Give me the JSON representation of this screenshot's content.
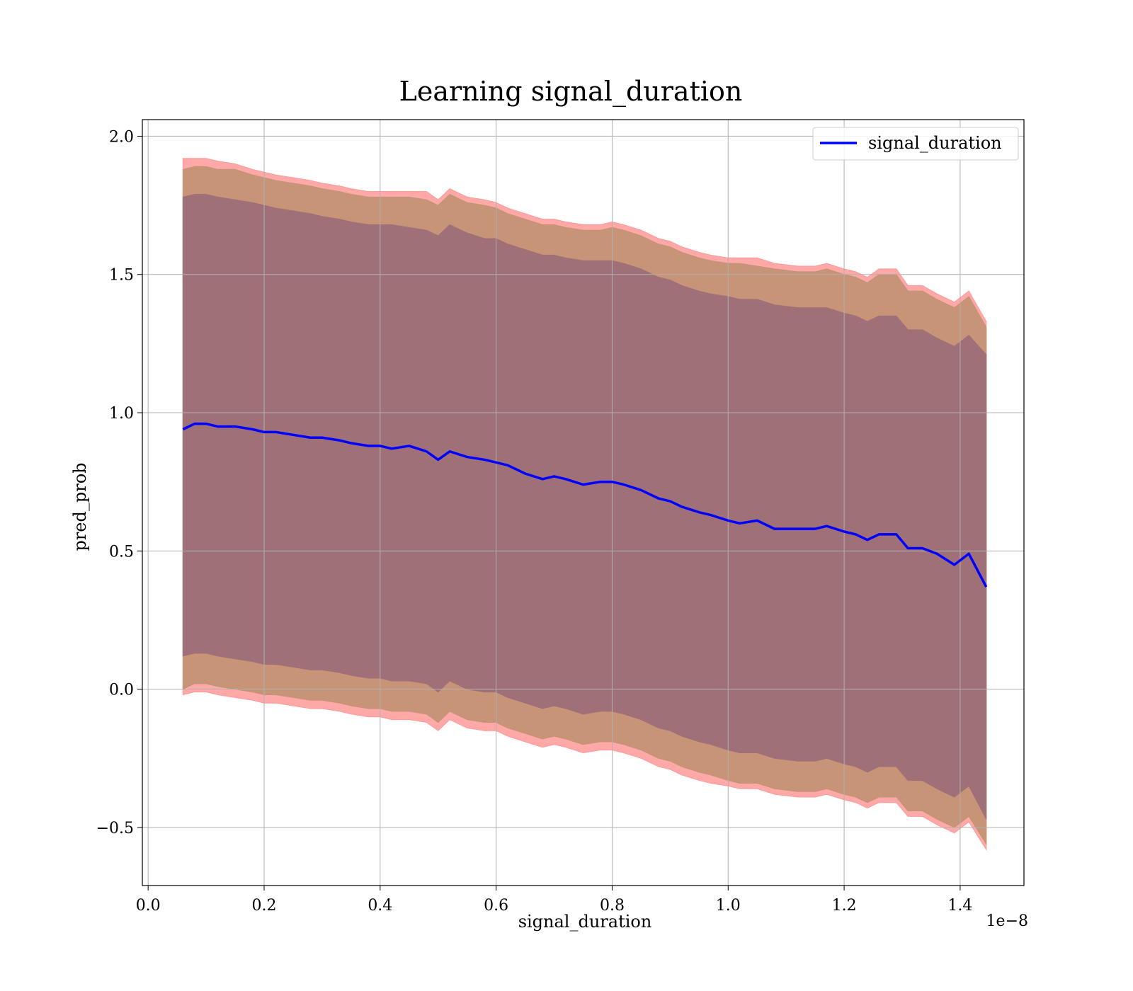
{
  "chart_data": {
    "type": "line",
    "title": "Learning signal_duration",
    "xlabel": "signal_duration",
    "ylabel": "pred_prob",
    "x_offset_text": "1e−8",
    "xlim": [
      -0.01,
      1.51
    ],
    "ylim": [
      -0.71,
      2.06
    ],
    "x_ticks": [
      0.0,
      0.2,
      0.4,
      0.6,
      0.8,
      1.0,
      1.2,
      1.4
    ],
    "x_tick_labels": [
      "0.0",
      "0.2",
      "0.4",
      "0.6",
      "0.8",
      "1.0",
      "1.2",
      "1.4"
    ],
    "y_ticks": [
      -0.5,
      0.0,
      0.5,
      1.0,
      1.5,
      2.0
    ],
    "y_tick_labels": [
      "−0.5",
      "0.0",
      "0.5",
      "1.0",
      "1.5",
      "2.0"
    ],
    "grid": true,
    "legend_position": "top-right",
    "colors": {
      "line": "#0000ff",
      "outer_band": "#ff9999",
      "middle_band": "#c49275",
      "inner_band": "#a07078",
      "grid": "#b0b0b0"
    },
    "x": [
      0.06,
      0.08,
      0.1,
      0.12,
      0.15,
      0.18,
      0.2,
      0.22,
      0.25,
      0.28,
      0.3,
      0.33,
      0.35,
      0.38,
      0.4,
      0.42,
      0.45,
      0.48,
      0.5,
      0.52,
      0.55,
      0.58,
      0.6,
      0.62,
      0.65,
      0.68,
      0.7,
      0.72,
      0.75,
      0.78,
      0.8,
      0.82,
      0.85,
      0.88,
      0.9,
      0.92,
      0.95,
      0.97,
      1.0,
      1.02,
      1.05,
      1.08,
      1.12,
      1.15,
      1.17,
      1.2,
      1.22,
      1.24,
      1.26,
      1.29,
      1.31,
      1.335,
      1.36,
      1.39,
      1.415,
      1.445
    ],
    "series": [
      {
        "name": "signal_duration",
        "values": [
          0.94,
          0.96,
          0.96,
          0.95,
          0.95,
          0.94,
          0.93,
          0.93,
          0.92,
          0.91,
          0.91,
          0.9,
          0.89,
          0.88,
          0.88,
          0.87,
          0.88,
          0.86,
          0.83,
          0.86,
          0.84,
          0.83,
          0.82,
          0.81,
          0.78,
          0.76,
          0.77,
          0.76,
          0.74,
          0.75,
          0.75,
          0.74,
          0.72,
          0.69,
          0.68,
          0.66,
          0.64,
          0.63,
          0.61,
          0.6,
          0.61,
          0.58,
          0.58,
          0.58,
          0.59,
          0.57,
          0.56,
          0.54,
          0.56,
          0.56,
          0.51,
          0.51,
          0.49,
          0.45,
          0.49,
          0.37
        ]
      }
    ],
    "bands": {
      "outer_upper": [
        1.92,
        1.92,
        1.92,
        1.91,
        1.9,
        1.88,
        1.87,
        1.86,
        1.85,
        1.84,
        1.83,
        1.82,
        1.81,
        1.8,
        1.8,
        1.8,
        1.8,
        1.8,
        1.77,
        1.81,
        1.78,
        1.77,
        1.76,
        1.74,
        1.72,
        1.7,
        1.7,
        1.69,
        1.68,
        1.68,
        1.69,
        1.68,
        1.66,
        1.63,
        1.62,
        1.6,
        1.58,
        1.57,
        1.56,
        1.56,
        1.56,
        1.54,
        1.53,
        1.53,
        1.54,
        1.52,
        1.51,
        1.49,
        1.52,
        1.52,
        1.46,
        1.46,
        1.43,
        1.4,
        1.44,
        1.33
      ],
      "middle_upper": [
        1.88,
        1.89,
        1.89,
        1.88,
        1.88,
        1.86,
        1.85,
        1.84,
        1.83,
        1.82,
        1.81,
        1.8,
        1.79,
        1.78,
        1.78,
        1.78,
        1.78,
        1.77,
        1.75,
        1.79,
        1.76,
        1.75,
        1.74,
        1.72,
        1.7,
        1.68,
        1.68,
        1.67,
        1.66,
        1.66,
        1.67,
        1.66,
        1.64,
        1.61,
        1.6,
        1.58,
        1.56,
        1.55,
        1.54,
        1.54,
        1.53,
        1.52,
        1.51,
        1.51,
        1.52,
        1.5,
        1.49,
        1.47,
        1.5,
        1.5,
        1.44,
        1.44,
        1.41,
        1.38,
        1.42,
        1.31
      ],
      "inner_upper": [
        1.78,
        1.79,
        1.79,
        1.78,
        1.77,
        1.76,
        1.75,
        1.74,
        1.73,
        1.72,
        1.71,
        1.7,
        1.69,
        1.68,
        1.68,
        1.68,
        1.67,
        1.66,
        1.64,
        1.68,
        1.65,
        1.63,
        1.63,
        1.61,
        1.59,
        1.57,
        1.57,
        1.56,
        1.55,
        1.55,
        1.55,
        1.54,
        1.52,
        1.49,
        1.48,
        1.46,
        1.44,
        1.43,
        1.42,
        1.41,
        1.41,
        1.39,
        1.38,
        1.38,
        1.38,
        1.36,
        1.35,
        1.33,
        1.35,
        1.35,
        1.3,
        1.3,
        1.27,
        1.24,
        1.28,
        1.21
      ],
      "inner_lower": [
        0.12,
        0.13,
        0.13,
        0.12,
        0.11,
        0.1,
        0.09,
        0.09,
        0.08,
        0.07,
        0.07,
        0.06,
        0.05,
        0.04,
        0.04,
        0.03,
        0.03,
        0.02,
        -0.01,
        0.03,
        0.0,
        -0.01,
        -0.01,
        -0.03,
        -0.05,
        -0.07,
        -0.06,
        -0.07,
        -0.09,
        -0.08,
        -0.08,
        -0.09,
        -0.11,
        -0.14,
        -0.15,
        -0.17,
        -0.19,
        -0.2,
        -0.22,
        -0.23,
        -0.23,
        -0.25,
        -0.26,
        -0.26,
        -0.25,
        -0.27,
        -0.28,
        -0.3,
        -0.28,
        -0.28,
        -0.33,
        -0.33,
        -0.36,
        -0.39,
        -0.35,
        -0.47
      ],
      "middle_lower": [
        0.0,
        0.02,
        0.02,
        0.01,
        0.0,
        -0.01,
        -0.02,
        -0.02,
        -0.03,
        -0.04,
        -0.04,
        -0.05,
        -0.06,
        -0.07,
        -0.07,
        -0.08,
        -0.08,
        -0.09,
        -0.12,
        -0.08,
        -0.11,
        -0.12,
        -0.12,
        -0.14,
        -0.16,
        -0.18,
        -0.17,
        -0.18,
        -0.2,
        -0.19,
        -0.19,
        -0.2,
        -0.22,
        -0.25,
        -0.26,
        -0.28,
        -0.3,
        -0.31,
        -0.33,
        -0.34,
        -0.34,
        -0.36,
        -0.37,
        -0.37,
        -0.36,
        -0.38,
        -0.39,
        -0.41,
        -0.39,
        -0.39,
        -0.44,
        -0.44,
        -0.47,
        -0.5,
        -0.46,
        -0.56
      ],
      "outer_lower": [
        -0.02,
        -0.01,
        -0.01,
        -0.02,
        -0.03,
        -0.04,
        -0.05,
        -0.05,
        -0.06,
        -0.07,
        -0.07,
        -0.08,
        -0.09,
        -0.1,
        -0.1,
        -0.11,
        -0.11,
        -0.12,
        -0.15,
        -0.11,
        -0.14,
        -0.15,
        -0.15,
        -0.17,
        -0.19,
        -0.21,
        -0.2,
        -0.21,
        -0.23,
        -0.22,
        -0.22,
        -0.23,
        -0.25,
        -0.28,
        -0.29,
        -0.31,
        -0.33,
        -0.34,
        -0.35,
        -0.36,
        -0.36,
        -0.38,
        -0.39,
        -0.39,
        -0.38,
        -0.4,
        -0.41,
        -0.43,
        -0.41,
        -0.41,
        -0.46,
        -0.46,
        -0.49,
        -0.52,
        -0.48,
        -0.58
      ]
    }
  }
}
